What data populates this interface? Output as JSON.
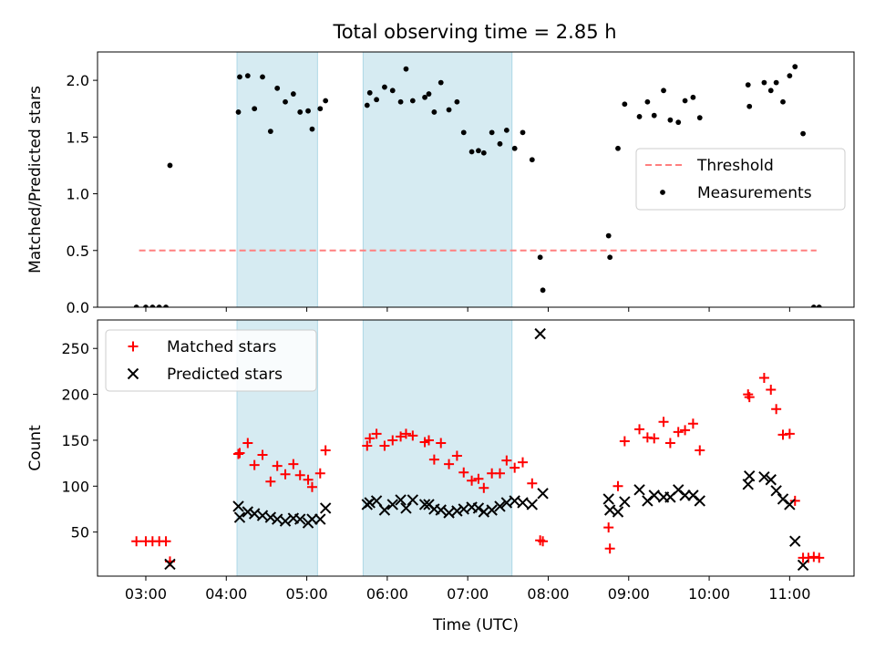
{
  "title": "Total observing time = 2.85 h",
  "colors": {
    "span": "#add8e6",
    "threshold": "#ff7f7f",
    "matched": "#ff0000",
    "predicted": "#000000",
    "measurement": "#000000"
  },
  "chart_data": [
    {
      "type": "scatter",
      "panel": "top",
      "title": "Total observing time = 2.85 h",
      "ylabel": "Matched/Predicted stars",
      "xlabel": "",
      "ylim": [
        0,
        2.25
      ],
      "yticks": [
        "0.0",
        "0.5",
        "1.0",
        "1.5",
        "2.0"
      ],
      "legend": {
        "placement": "center-right",
        "entries": [
          "Threshold",
          "Measurements"
        ]
      },
      "shaded_spans": [
        [
          "04:08",
          "05:08"
        ],
        [
          "05:42",
          "07:33"
        ]
      ],
      "threshold": {
        "name": "Threshold",
        "y": 0.5,
        "x_range": [
          "02:55",
          "11:20"
        ]
      },
      "series": [
        {
          "name": "Measurements",
          "points": [
            [
              "02:53",
              0.0
            ],
            [
              "03:00",
              0.0
            ],
            [
              "03:05",
              0.0
            ],
            [
              "03:10",
              0.0
            ],
            [
              "03:15",
              0.0
            ],
            [
              "03:18",
              1.25
            ],
            [
              "04:09",
              1.72
            ],
            [
              "04:10",
              2.03
            ],
            [
              "04:16",
              2.04
            ],
            [
              "04:21",
              1.75
            ],
            [
              "04:27",
              2.03
            ],
            [
              "04:33",
              1.55
            ],
            [
              "04:38",
              1.93
            ],
            [
              "04:44",
              1.81
            ],
            [
              "04:50",
              1.88
            ],
            [
              "04:55",
              1.72
            ],
            [
              "05:01",
              1.73
            ],
            [
              "05:04",
              1.57
            ],
            [
              "05:10",
              1.75
            ],
            [
              "05:14",
              1.82
            ],
            [
              "05:45",
              1.78
            ],
            [
              "05:47",
              1.89
            ],
            [
              "05:52",
              1.83
            ],
            [
              "05:58",
              1.94
            ],
            [
              "06:04",
              1.91
            ],
            [
              "06:10",
              1.81
            ],
            [
              "06:14",
              2.1
            ],
            [
              "06:19",
              1.82
            ],
            [
              "06:28",
              1.85
            ],
            [
              "06:31",
              1.88
            ],
            [
              "06:35",
              1.72
            ],
            [
              "06:40",
              1.98
            ],
            [
              "06:46",
              1.74
            ],
            [
              "06:52",
              1.81
            ],
            [
              "06:57",
              1.54
            ],
            [
              "07:03",
              1.37
            ],
            [
              "07:08",
              1.38
            ],
            [
              "07:12",
              1.36
            ],
            [
              "07:18",
              1.54
            ],
            [
              "07:24",
              1.44
            ],
            [
              "07:29",
              1.56
            ],
            [
              "07:35",
              1.4
            ],
            [
              "07:41",
              1.54
            ],
            [
              "07:48",
              1.3
            ],
            [
              "07:54",
              0.44
            ],
            [
              "07:56",
              0.15
            ],
            [
              "08:45",
              0.63
            ],
            [
              "08:46",
              0.44
            ],
            [
              "08:52",
              1.4
            ],
            [
              "08:57",
              1.79
            ],
            [
              "09:08",
              1.68
            ],
            [
              "09:14",
              1.81
            ],
            [
              "09:19",
              1.69
            ],
            [
              "09:26",
              1.91
            ],
            [
              "09:31",
              1.65
            ],
            [
              "09:37",
              1.63
            ],
            [
              "09:42",
              1.82
            ],
            [
              "09:48",
              1.85
            ],
            [
              "09:53",
              1.67
            ],
            [
              "10:29",
              1.96
            ],
            [
              "10:30",
              1.77
            ],
            [
              "10:41",
              1.98
            ],
            [
              "10:46",
              1.91
            ],
            [
              "10:50",
              1.98
            ],
            [
              "10:55",
              1.81
            ],
            [
              "11:00",
              2.04
            ],
            [
              "11:04",
              2.12
            ],
            [
              "11:10",
              1.53
            ],
            [
              "11:18",
              0.0
            ],
            [
              "11:22",
              0.0
            ]
          ]
        }
      ]
    },
    {
      "type": "scatter",
      "panel": "bottom",
      "title": "",
      "ylabel": "Count",
      "xlabel": "Time (UTC)",
      "ylim": [
        2,
        281
      ],
      "yticks": [
        "50",
        "100",
        "150",
        "200",
        "250"
      ],
      "xticks": [
        "03:00",
        "04:00",
        "05:00",
        "06:00",
        "07:00",
        "08:00",
        "09:00",
        "10:00",
        "11:00"
      ],
      "xlim": [
        "02:24",
        "11:48"
      ],
      "legend": {
        "placement": "upper-left",
        "entries": [
          "Matched stars",
          "Predicted stars"
        ]
      },
      "shaded_spans": [
        [
          "04:08",
          "05:08"
        ],
        [
          "05:42",
          "07:33"
        ]
      ],
      "series": [
        {
          "name": "Matched stars",
          "marker": "+",
          "points": [
            [
              "02:53",
              40
            ],
            [
              "03:00",
              40
            ],
            [
              "03:05",
              40
            ],
            [
              "03:10",
              40
            ],
            [
              "03:15",
              40
            ],
            [
              "03:18",
              18
            ],
            [
              "04:09",
              135
            ],
            [
              "04:10",
              136
            ],
            [
              "04:16",
              147
            ],
            [
              "04:21",
              123
            ],
            [
              "04:27",
              134
            ],
            [
              "04:33",
              105
            ],
            [
              "04:38",
              122
            ],
            [
              "04:44",
              113
            ],
            [
              "04:50",
              124
            ],
            [
              "04:55",
              112
            ],
            [
              "05:01",
              107
            ],
            [
              "05:04",
              99
            ],
            [
              "05:10",
              114
            ],
            [
              "05:14",
              139
            ],
            [
              "05:45",
              144
            ],
            [
              "05:47",
              152
            ],
            [
              "05:52",
              157
            ],
            [
              "05:58",
              144
            ],
            [
              "06:04",
              150
            ],
            [
              "06:10",
              154
            ],
            [
              "06:14",
              157
            ],
            [
              "06:19",
              155
            ],
            [
              "06:28",
              148
            ],
            [
              "06:31",
              150
            ],
            [
              "06:35",
              129
            ],
            [
              "06:40",
              147
            ],
            [
              "06:46",
              124
            ],
            [
              "06:52",
              133
            ],
            [
              "06:57",
              115
            ],
            [
              "07:03",
              106
            ],
            [
              "07:08",
              108
            ],
            [
              "07:12",
              98
            ],
            [
              "07:18",
              114
            ],
            [
              "07:24",
              114
            ],
            [
              "07:29",
              128
            ],
            [
              "07:35",
              120
            ],
            [
              "07:41",
              126
            ],
            [
              "07:48",
              103
            ],
            [
              "07:54",
              41
            ],
            [
              "07:56",
              40
            ],
            [
              "08:45",
              55
            ],
            [
              "08:46",
              32
            ],
            [
              "08:52",
              100
            ],
            [
              "08:57",
              149
            ],
            [
              "09:08",
              162
            ],
            [
              "09:14",
              153
            ],
            [
              "09:19",
              152
            ],
            [
              "09:26",
              170
            ],
            [
              "09:31",
              147
            ],
            [
              "09:37",
              159
            ],
            [
              "09:42",
              161
            ],
            [
              "09:48",
              168
            ],
            [
              "09:53",
              139
            ],
            [
              "10:29",
              200
            ],
            [
              "10:30",
              197
            ],
            [
              "10:41",
              218
            ],
            [
              "10:46",
              205
            ],
            [
              "10:50",
              184
            ],
            [
              "10:55",
              156
            ],
            [
              "11:00",
              157
            ],
            [
              "11:04",
              84
            ],
            [
              "11:10",
              22
            ],
            [
              "11:14",
              22
            ],
            [
              "11:18",
              23
            ],
            [
              "11:22",
              22
            ]
          ]
        },
        {
          "name": "Predicted stars",
          "marker": "x",
          "points": [
            [
              "03:18",
              15
            ],
            [
              "04:09",
              78
            ],
            [
              "04:10",
              66
            ],
            [
              "04:16",
              72
            ],
            [
              "04:21",
              70
            ],
            [
              "04:27",
              68
            ],
            [
              "04:33",
              66
            ],
            [
              "04:38",
              64
            ],
            [
              "04:44",
              62
            ],
            [
              "04:50",
              65
            ],
            [
              "04:55",
              64
            ],
            [
              "05:01",
              60
            ],
            [
              "05:04",
              64
            ],
            [
              "05:10",
              64
            ],
            [
              "05:14",
              76
            ],
            [
              "05:45",
              80
            ],
            [
              "05:47",
              82
            ],
            [
              "05:52",
              84
            ],
            [
              "05:58",
              74
            ],
            [
              "06:04",
              80
            ],
            [
              "06:10",
              85
            ],
            [
              "06:14",
              76
            ],
            [
              "06:19",
              85
            ],
            [
              "06:28",
              80
            ],
            [
              "06:31",
              80
            ],
            [
              "06:35",
              75
            ],
            [
              "06:40",
              74
            ],
            [
              "06:46",
              71
            ],
            [
              "06:52",
              73
            ],
            [
              "06:57",
              75
            ],
            [
              "07:03",
              77
            ],
            [
              "07:08",
              76
            ],
            [
              "07:12",
              72
            ],
            [
              "07:18",
              74
            ],
            [
              "07:24",
              78
            ],
            [
              "07:29",
              82
            ],
            [
              "07:35",
              84
            ],
            [
              "07:41",
              82
            ],
            [
              "07:48",
              80
            ],
            [
              "07:54",
              266
            ],
            [
              "07:56",
              92
            ],
            [
              "08:45",
              86
            ],
            [
              "08:46",
              74
            ],
            [
              "08:52",
              72
            ],
            [
              "08:57",
              83
            ],
            [
              "09:08",
              96
            ],
            [
              "09:14",
              84
            ],
            [
              "09:19",
              90
            ],
            [
              "09:26",
              88
            ],
            [
              "09:31",
              88
            ],
            [
              "09:37",
              96
            ],
            [
              "09:42",
              90
            ],
            [
              "09:48",
              90
            ],
            [
              "09:53",
              84
            ],
            [
              "10:29",
              102
            ],
            [
              "10:30",
              111
            ],
            [
              "10:41",
              110
            ],
            [
              "10:46",
              107
            ],
            [
              "10:50",
              95
            ],
            [
              "10:55",
              86
            ],
            [
              "11:00",
              80
            ],
            [
              "11:04",
              40
            ],
            [
              "11:10",
              14
            ]
          ]
        }
      ]
    }
  ]
}
